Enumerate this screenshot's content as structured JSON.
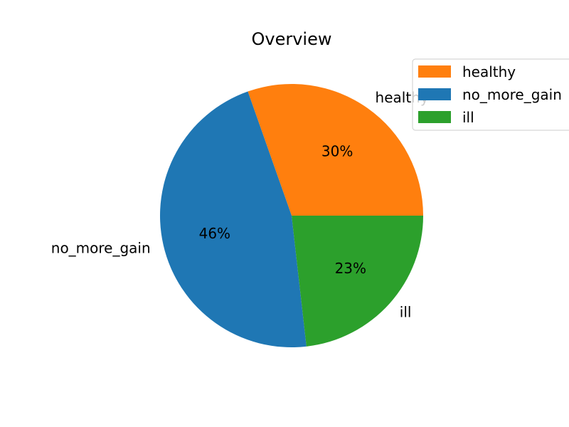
{
  "chart_data": {
    "type": "pie",
    "title": "Overview",
    "labels": [
      "healthy",
      "no_more_gain",
      "ill"
    ],
    "values": [
      30.4,
      46.4,
      23.2
    ],
    "percent_labels": [
      "30%",
      "46%",
      "23%"
    ],
    "colors": [
      "#ff7f0e",
      "#1f77b4",
      "#2ca02c"
    ],
    "start_angle_deg": 0,
    "direction": "counterclockwise",
    "legend": {
      "placement": "top-right",
      "entries": [
        "healthy",
        "no_more_gain",
        "ill"
      ]
    }
  }
}
